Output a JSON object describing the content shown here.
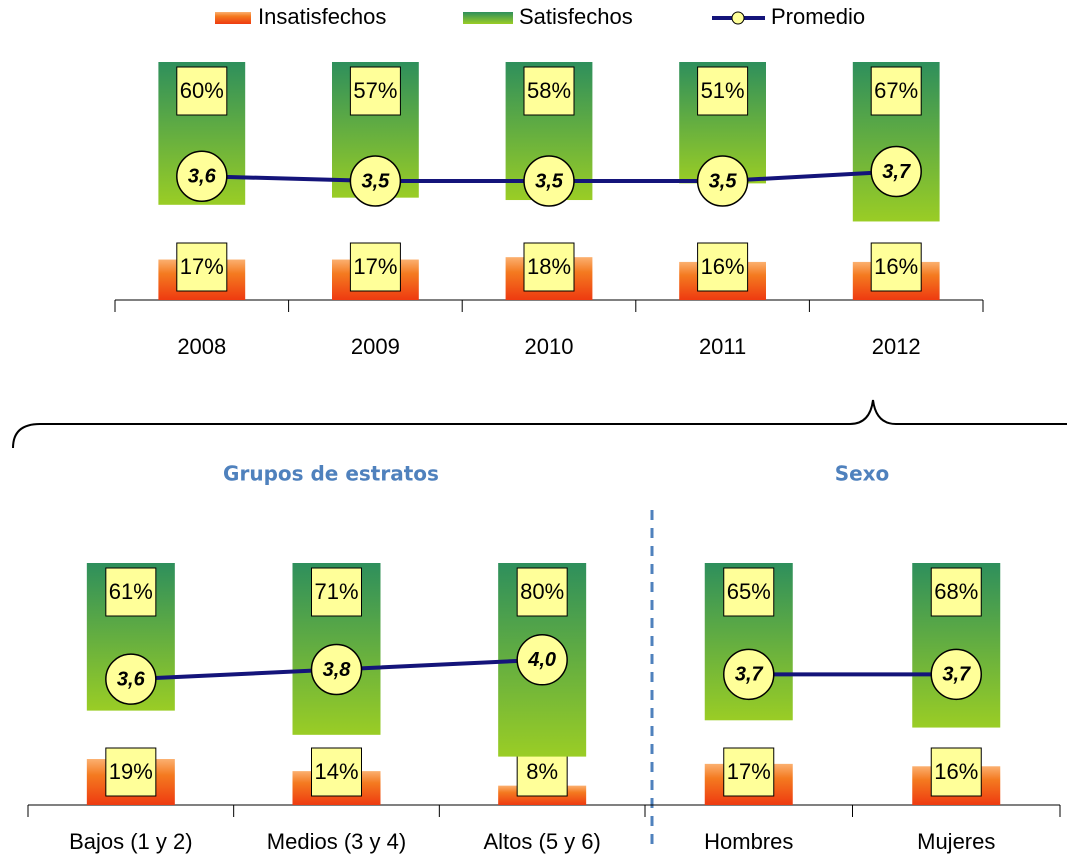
{
  "chart_data": [
    {
      "type": "bar",
      "categories": [
        "2008",
        "2009",
        "2010",
        "2011",
        "2012"
      ],
      "series": [
        {
          "name": "Insatisfechos",
          "color": "#f2541c",
          "values": [
            17,
            17,
            18,
            16,
            16
          ],
          "value_labels": [
            "17%",
            "17%",
            "18%",
            "16%",
            "16%"
          ]
        },
        {
          "name": "Satisfechos",
          "color": "#5fa83a",
          "values": [
            60,
            57,
            58,
            51,
            67
          ],
          "value_labels": [
            "60%",
            "57%",
            "58%",
            "51%",
            "67%"
          ]
        },
        {
          "name": "Promedio",
          "type": "line",
          "axis": "y2",
          "color": "#14147a",
          "values": [
            3.6,
            3.5,
            3.5,
            3.5,
            3.7
          ],
          "value_labels": [
            "3,6",
            "3,5",
            "3,5",
            "3,5",
            "3,7"
          ]
        }
      ],
      "ylim": [
        0,
        100
      ],
      "y2lim": [
        1,
        6
      ]
    },
    {
      "type": "bar",
      "title": "Grupos de estratos",
      "categories": [
        "Bajos (1 y 2)",
        "Medios (3 y 4)",
        "Altos (5 y 6)"
      ],
      "series": [
        {
          "name": "Insatisfechos",
          "color": "#f2541c",
          "values": [
            19,
            14,
            8
          ],
          "value_labels": [
            "19%",
            "14%",
            "8%"
          ]
        },
        {
          "name": "Satisfechos",
          "color": "#5fa83a",
          "values": [
            61,
            71,
            80
          ],
          "value_labels": [
            "61%",
            "71%",
            "80%"
          ]
        },
        {
          "name": "Promedio",
          "type": "line",
          "axis": "y2",
          "color": "#14147a",
          "values": [
            3.6,
            3.8,
            4.0
          ],
          "value_labels": [
            "3,6",
            "3,8",
            "4,0"
          ]
        }
      ],
      "ylim": [
        0,
        100
      ],
      "y2lim": [
        1,
        6
      ]
    },
    {
      "type": "bar",
      "title": "Sexo",
      "categories": [
        "Hombres",
        "Mujeres"
      ],
      "series": [
        {
          "name": "Insatisfechos",
          "color": "#f2541c",
          "values": [
            17,
            16
          ],
          "value_labels": [
            "17%",
            "16%"
          ]
        },
        {
          "name": "Satisfechos",
          "color": "#5fa83a",
          "values": [
            65,
            68
          ],
          "value_labels": [
            "65%",
            "68%"
          ]
        },
        {
          "name": "Promedio",
          "type": "line",
          "axis": "y2",
          "color": "#14147a",
          "values": [
            3.7,
            3.7
          ],
          "value_labels": [
            "3,7",
            "3,7"
          ]
        }
      ],
      "ylim": [
        0,
        100
      ],
      "y2lim": [
        1,
        6
      ]
    }
  ]
}
